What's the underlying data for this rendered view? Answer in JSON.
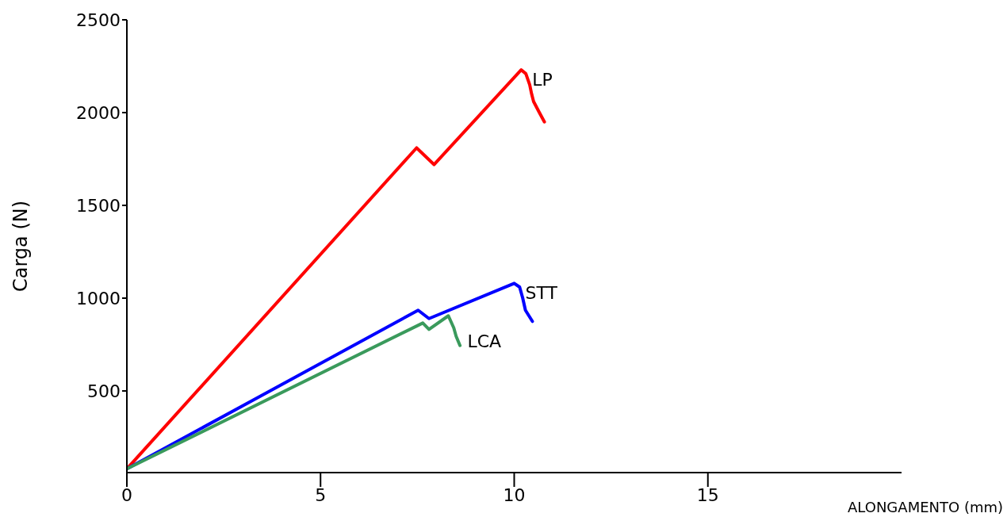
{
  "chart_data": {
    "type": "line",
    "xlabel": "ALONGAMENTO (mm)",
    "ylabel": "Carga (N)",
    "xlim": [
      0,
      20
    ],
    "xticks": [
      0,
      5,
      10,
      15
    ],
    "ylim": [
      60,
      2500
    ],
    "yticks": [
      500,
      1000,
      1500,
      2000,
      2500
    ],
    "marker": "none",
    "line_style": "solid",
    "series": [
      {
        "name": "LP",
        "color": "#ff0000",
        "x": [
          0,
          7.48,
          7.93,
          10.18,
          10.3,
          10.4,
          10.45,
          10.5,
          10.65,
          10.78
        ],
        "values": [
          80,
          1810,
          1720,
          2230,
          2210,
          2150,
          2100,
          2060,
          2000,
          1950
        ]
      },
      {
        "name": "STT",
        "color": "#0000ff",
        "x": [
          0,
          7.52,
          7.8,
          10.0,
          10.14,
          10.22,
          10.29,
          10.47
        ],
        "values": [
          80,
          935,
          890,
          1080,
          1060,
          1000,
          935,
          875
        ]
      },
      {
        "name": "LCA",
        "color": "#3a9a5c",
        "x": [
          0,
          7.64,
          7.8,
          8.3,
          8.44,
          8.5,
          8.6
        ],
        "values": [
          80,
          866,
          832,
          905,
          840,
          795,
          745
        ]
      }
    ]
  }
}
